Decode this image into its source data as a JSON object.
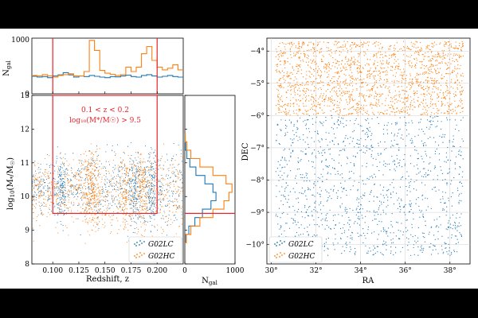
{
  "colors": {
    "lc": "#1f77b4",
    "hc": "#ff7f0e",
    "selection": "#e8242c",
    "grid": "#d0d0d0"
  },
  "left_panel": {
    "selection_text_line1": "0.1 < z < 0.2",
    "selection_text_line2": "log₁₀(M*/M☉) > 9.5",
    "legend": [
      "G02LC",
      "G02HC"
    ]
  },
  "right_panel": {
    "legend": [
      "G02LC",
      "G02HC"
    ]
  },
  "chart_data": [
    {
      "type": "line",
      "panel": "top-histogram",
      "xlim": [
        0.08,
        0.225
      ],
      "ylim": [
        0,
        1000
      ],
      "visible_y_range": [
        0,
        1000
      ],
      "yticks": [
        0,
        1000
      ],
      "ylabel": "N_gal",
      "xlabel": "",
      "series": [
        {
          "name": "G02LC",
          "x": [
            0.08,
            0.085,
            0.09,
            0.095,
            0.1,
            0.105,
            0.11,
            0.115,
            0.12,
            0.125,
            0.13,
            0.135,
            0.14,
            0.145,
            0.15,
            0.155,
            0.16,
            0.165,
            0.17,
            0.175,
            0.18,
            0.185,
            0.19,
            0.195,
            0.2,
            0.205,
            0.21,
            0.215,
            0.22
          ],
          "values": [
            315,
            300,
            310,
            290,
            320,
            340,
            380,
            340,
            300,
            320,
            310,
            330,
            315,
            300,
            290,
            310,
            305,
            320,
            335,
            310,
            300,
            330,
            345,
            320,
            300,
            315,
            330,
            310,
            300
          ]
        },
        {
          "name": "G02HC",
          "x": [
            0.08,
            0.085,
            0.09,
            0.095,
            0.1,
            0.105,
            0.11,
            0.115,
            0.12,
            0.125,
            0.13,
            0.135,
            0.14,
            0.145,
            0.15,
            0.155,
            0.16,
            0.165,
            0.17,
            0.175,
            0.18,
            0.185,
            0.19,
            0.195,
            0.2,
            0.205,
            0.21,
            0.215,
            0.22
          ],
          "values": [
            330,
            320,
            345,
            320,
            300,
            330,
            345,
            360,
            320,
            320,
            400,
            960,
            780,
            420,
            370,
            350,
            330,
            345,
            480,
            400,
            480,
            720,
            850,
            600,
            480,
            430,
            460,
            520,
            430
          ]
        }
      ],
      "selection_x": [
        0.1,
        0.2
      ]
    },
    {
      "type": "scatter",
      "panel": "main-scatter",
      "xlabel": "Redshift, z",
      "ylabel": "log₁₀(M*/M☉)",
      "xlim": [
        0.08,
        0.225
      ],
      "ylim": [
        8,
        13
      ],
      "xticks": [
        0.1,
        0.125,
        0.15,
        0.175,
        0.2
      ],
      "xtick_labels": [
        "0.100",
        "0.125",
        "0.150",
        "0.175",
        "0.200"
      ],
      "yticks": [
        8,
        9,
        10,
        11,
        12,
        13
      ],
      "series": [
        {
          "name": "G02LC",
          "x_range": [
            0.08,
            0.225
          ],
          "y_center": 10.25,
          "y_spread": 0.55,
          "dense_z": [
            0.108,
            0.178,
            0.195
          ]
        },
        {
          "name": "G02HC",
          "x_range": [
            0.08,
            0.225
          ],
          "y_center": 10.15,
          "y_spread": 0.6,
          "dense_z": [
            0.135,
            0.14,
            0.17,
            0.185
          ]
        }
      ],
      "selection_box": {
        "z": [
          0.1,
          0.2
        ],
        "logM": [
          9.5,
          13
        ]
      },
      "annotation": [
        "0.1 < z < 0.2",
        "log₁₀(M*/M☉) > 9.5"
      ],
      "legend": "bottom-right"
    },
    {
      "type": "line",
      "panel": "right-histogram",
      "xlabel": "N_gal",
      "xlim": [
        0,
        1000
      ],
      "xticks": [
        0,
        1000
      ],
      "ylim": [
        8,
        13
      ],
      "series": [
        {
          "name": "G02LC",
          "y": [
            8.75,
            9,
            9.25,
            9.5,
            9.75,
            10,
            10.25,
            10.5,
            10.75,
            11,
            11.25,
            11.5,
            11.75
          ],
          "values": [
            20,
            80,
            200,
            350,
            520,
            620,
            560,
            400,
            220,
            100,
            40,
            15,
            5
          ]
        },
        {
          "name": "G02HC",
          "y": [
            8.75,
            9,
            9.25,
            9.5,
            9.75,
            10,
            10.25,
            10.5,
            10.75,
            11,
            11.25,
            11.5,
            11.75
          ],
          "values": [
            30,
            120,
            300,
            560,
            780,
            880,
            940,
            820,
            560,
            300,
            120,
            40,
            10
          ]
        }
      ],
      "selection_y": 9.5
    },
    {
      "type": "scatter",
      "panel": "sky-map",
      "xlabel": "RA",
      "ylabel": "DEC",
      "xlim": [
        29.8,
        38.9
      ],
      "ylim": [
        -10.6,
        -3.6
      ],
      "x_reversed": false,
      "xticks": [
        30,
        32,
        34,
        36,
        38
      ],
      "xtick_labels": [
        "30°",
        "32°",
        "34°",
        "36°",
        "38°"
      ],
      "yticks": [
        -4,
        -5,
        -6,
        -7,
        -8,
        -9,
        -10
      ],
      "ytick_labels": [
        "−4°",
        "−5°",
        "−6°",
        "−7°",
        "−8°",
        "−9°",
        "−10°"
      ],
      "series": [
        {
          "name": "G02HC",
          "ra_range": [
            30.2,
            38.6
          ],
          "dec_range": [
            -6.0,
            -3.7
          ]
        },
        {
          "name": "G02LC",
          "ra_range": [
            30.2,
            38.6
          ],
          "dec_range": [
            -10.35,
            -6.0
          ]
        }
      ],
      "grid": true,
      "legend": "bottom-left"
    }
  ]
}
